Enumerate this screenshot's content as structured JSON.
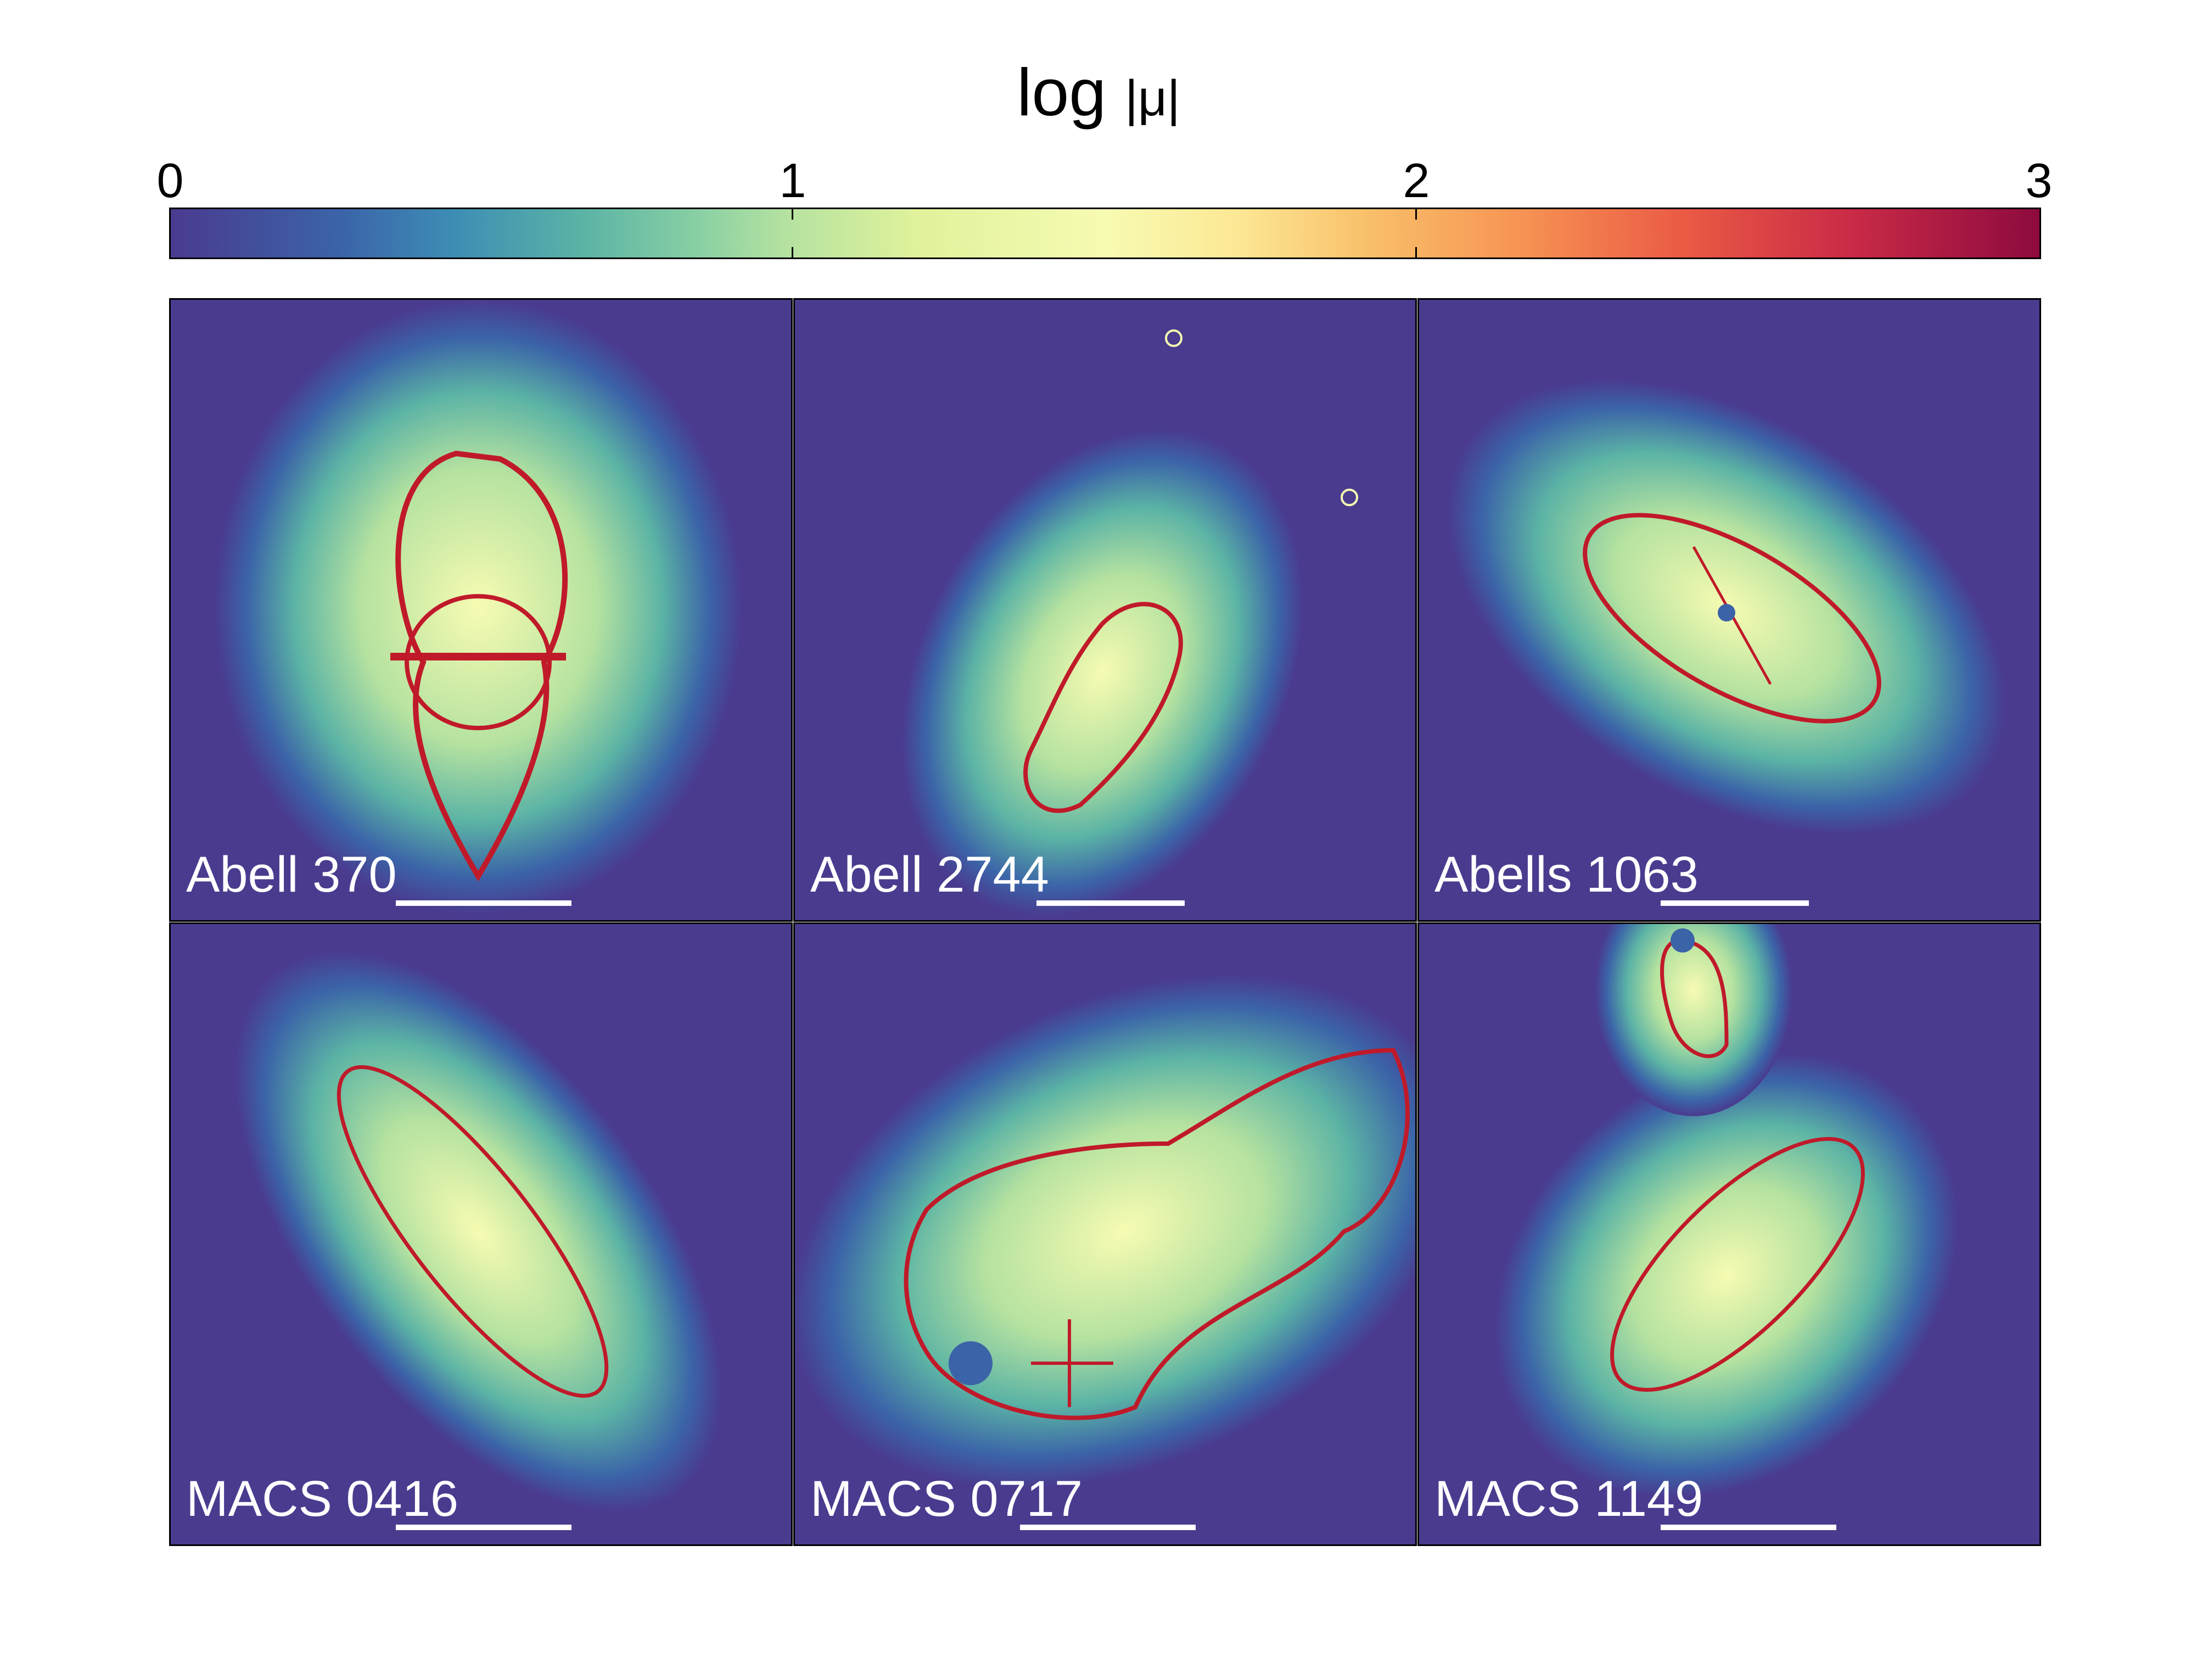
{
  "colorbar": {
    "title": "log",
    "title_symbol": "|μ|",
    "ticks": [
      "0",
      "1",
      "2",
      "3"
    ]
  },
  "panels": [
    {
      "name": "Abell 370"
    },
    {
      "name": "Abell 2744"
    },
    {
      "name": "Abells 1063"
    },
    {
      "name": "MACS 0416"
    },
    {
      "name": "MACS 0717"
    },
    {
      "name": "MACS 1149"
    }
  ],
  "colors": {
    "background": "#4a3b8f",
    "low": "#3d8cb5",
    "mid": "#b5e2a0",
    "high": "#f7fbb2",
    "critical": "#c01a2a"
  }
}
